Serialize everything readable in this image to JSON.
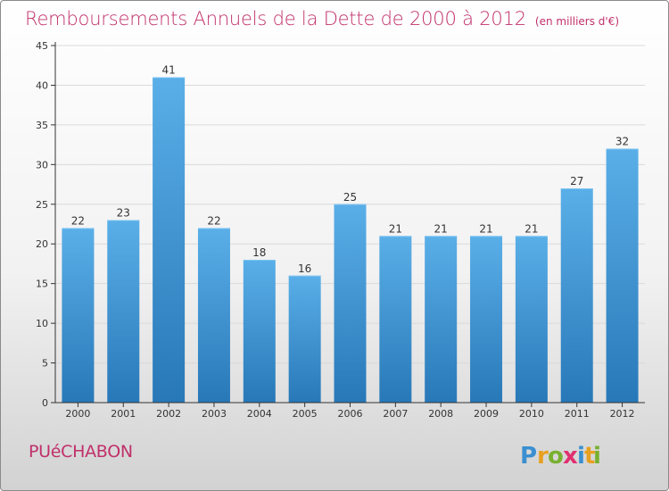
{
  "header": {
    "title": "Remboursements Annuels de la Dette de 2000 à 2012",
    "unit": "(en milliers d'€)"
  },
  "footer": {
    "city": "PUéCHABON",
    "brand": "Proxiti"
  },
  "colors": {
    "title": "#c0306a",
    "bar_top": "#5aafe8",
    "bar_bottom": "#2878b8",
    "axis": "#333333",
    "grid": "#d9d9d9",
    "logo_letters": [
      "#3a8fd0",
      "#e8a020",
      "#78b030",
      "#e03070",
      "#3a8fd0",
      "#e8a020",
      "#78b030"
    ]
  },
  "chart_data": {
    "type": "bar",
    "title": "Remboursements Annuels de la Dette de 2000 à 2012",
    "categories": [
      "2000",
      "2001",
      "2002",
      "2003",
      "2004",
      "2005",
      "2006",
      "2007",
      "2008",
      "2009",
      "2010",
      "2011",
      "2012"
    ],
    "values": [
      22,
      23,
      41,
      22,
      18,
      16,
      25,
      21,
      21,
      21,
      21,
      27,
      32
    ],
    "ylim": [
      0,
      45
    ],
    "yticks": [
      0,
      5,
      10,
      15,
      20,
      25,
      30,
      35,
      40,
      45
    ],
    "xlabel": "",
    "ylabel": "",
    "grid": true,
    "legend": "none"
  }
}
